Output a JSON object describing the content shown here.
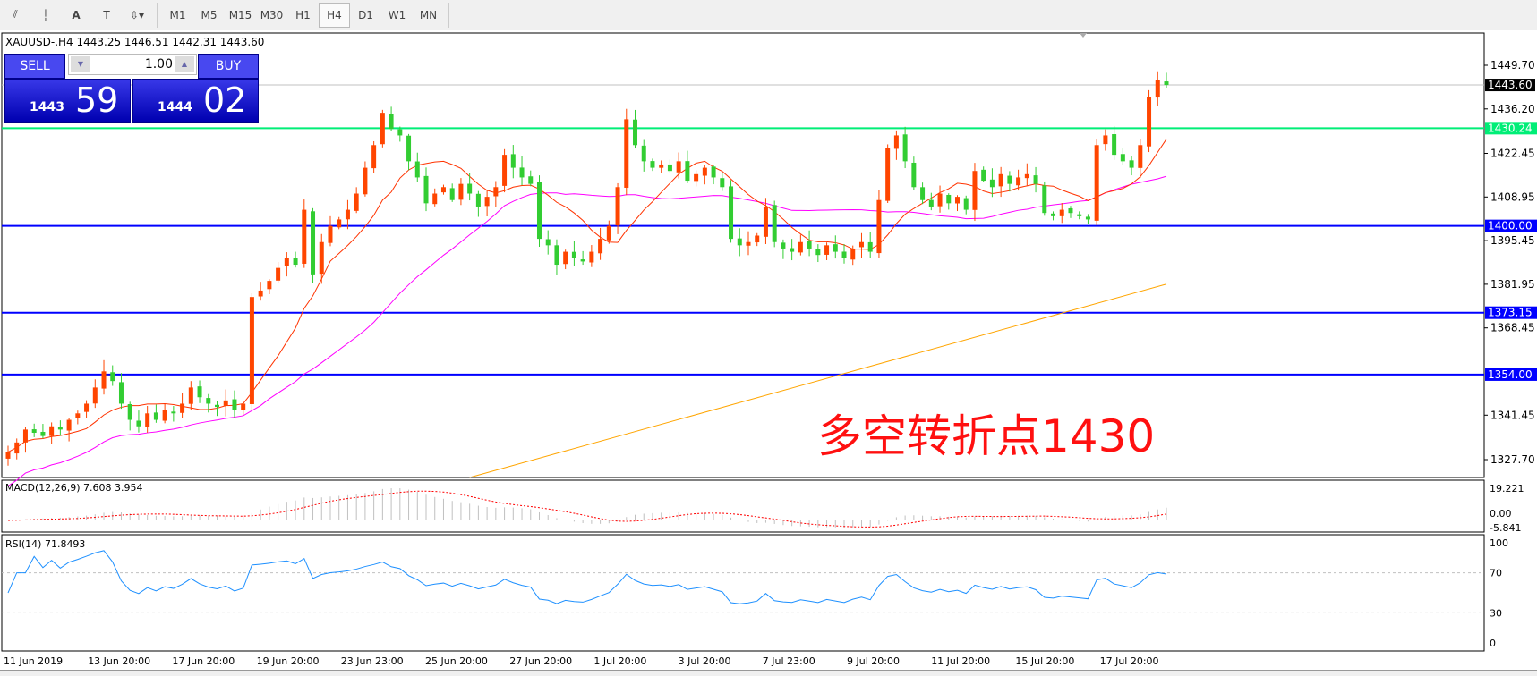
{
  "toolbar": {
    "tools": [
      "fibo-expansion-icon",
      "fibo-fan-icon",
      "text-icon",
      "text-label-icon",
      "arrows-icon"
    ],
    "timeframes": [
      "M1",
      "M5",
      "M15",
      "M30",
      "H1",
      "H4",
      "D1",
      "W1",
      "MN"
    ],
    "selected": "H4"
  },
  "chart": {
    "title": "XAUUSD-,H4  1443.25 1446.51 1442.31 1443.60"
  },
  "trade": {
    "sell_label": "SELL",
    "buy_label": "BUY",
    "lot": "1.00",
    "sell_big": "1443",
    "sell_small": "59",
    "buy_big": "1444",
    "buy_small": "02"
  },
  "annotation": "多空转折点1430",
  "chart_data": {
    "type": "candlestick",
    "symbol": "XAUUSD-",
    "timeframe": "H4",
    "ylim": [
      1327.7,
      1449.7
    ],
    "price_ticks": [
      "1449.70",
      "1436.20",
      "1422.45",
      "1408.95",
      "1395.45",
      "1381.95",
      "1368.45",
      "1341.45",
      "1327.70"
    ],
    "price_tick_values": [
      1449.7,
      1436.2,
      1422.45,
      1408.95,
      1395.45,
      1381.95,
      1368.45,
      1341.45,
      1327.7
    ],
    "current_price": {
      "value": 1443.6,
      "label": "1443.60"
    },
    "hlines": [
      {
        "value": 1430.24,
        "label": "1430.24",
        "color": "#00ee77"
      },
      {
        "value": 1400.0,
        "label": "1400.00",
        "color": "#0000ff"
      },
      {
        "value": 1373.15,
        "label": "1373.15",
        "color": "#0000ff"
      },
      {
        "value": 1354.0,
        "label": "1354.00",
        "color": "#0000ff"
      }
    ],
    "closes": [
      1330,
      1333,
      1337,
      1336,
      1335,
      1338,
      1337,
      1340,
      1342,
      1345,
      1350,
      1355,
      1352,
      1345,
      1340,
      1338,
      1342,
      1340,
      1343,
      1342,
      1345,
      1350,
      1347,
      1345,
      1344,
      1346,
      1343,
      1345,
      1378,
      1380,
      1383,
      1387,
      1390,
      1388,
      1405,
      1385,
      1395,
      1400,
      1402,
      1405,
      1410,
      1418,
      1425,
      1435,
      1430,
      1428,
      1420,
      1415,
      1407,
      1410,
      1412,
      1408,
      1413,
      1410,
      1406,
      1409,
      1412,
      1422,
      1418,
      1415,
      1413,
      1396,
      1394,
      1388,
      1392,
      1390,
      1389,
      1392,
      1396,
      1400,
      1412,
      1433,
      1425,
      1420,
      1418,
      1419,
      1417,
      1420,
      1414,
      1416,
      1418,
      1415,
      1412,
      1396,
      1394,
      1395,
      1397,
      1406,
      1395,
      1393,
      1392,
      1395,
      1393,
      1391,
      1394,
      1392,
      1390,
      1393,
      1395,
      1392,
      1408,
      1424,
      1428,
      1420,
      1412,
      1408,
      1406,
      1410,
      1407,
      1409,
      1405,
      1417,
      1414,
      1412,
      1416,
      1413,
      1415,
      1416,
      1413,
      1404,
      1403,
      1405,
      1404,
      1403,
      1402,
      1425,
      1428,
      1422,
      1420,
      1418,
      1425,
      1440,
      1445,
      1443.6
    ],
    "ma_fast_period": 10,
    "ma_mid_period": 30,
    "ma_slow": [
      {
        "bar": 53,
        "price": 1322
      },
      {
        "bar": 133,
        "price": 1382
      }
    ],
    "colors": {
      "up": "#ff4500",
      "down": "#32cd32",
      "ma_fast": "#ff3300",
      "ma_mid": "#ff00ff",
      "ma_slow": "#ffa500"
    },
    "x_labels": [
      "11 Jun 2019",
      "13 Jun 20:00",
      "17 Jun 20:00",
      "19 Jun 20:00",
      "23 Jun 23:00",
      "25 Jun 20:00",
      "27 Jun 20:00",
      "1 Jul 20:00",
      "3 Jul 20:00",
      "7 Jul 23:00",
      "9 Jul 20:00",
      "11 Jul 20:00",
      "15 Jul 20:00",
      "17 Jul 20:00"
    ],
    "macd": {
      "label": "MACD(12,26,9) 7.608 3.954",
      "ticks": [
        "19.221",
        "0.00",
        "-5.841"
      ]
    },
    "rsi": {
      "label": "RSI(14) 71.8493",
      "ticks": [
        "100",
        "70",
        "30",
        "0"
      ],
      "levels": [
        70,
        30
      ]
    }
  }
}
